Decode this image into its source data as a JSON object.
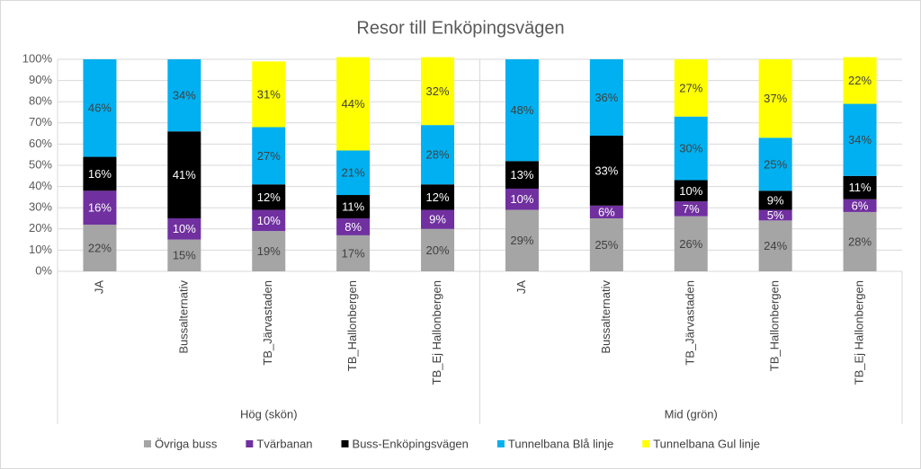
{
  "chart_data": {
    "type": "stacked_bar",
    "title": "Resor till Enköpingsvägen",
    "groups": [
      "Hög (skön)",
      "Mid (grön)"
    ],
    "categories": [
      "JA",
      "Bussalternativ",
      "TB_Järvastaden",
      "TB_Hallonbergen",
      "TB_Ej Hallonbergen",
      "JA",
      "Bussalternativ",
      "TB_Järvastaden",
      "TB_Hallonbergen",
      "TB_Ej Hallonbergen"
    ],
    "ylim": [
      0,
      100
    ],
    "yticks": [
      {
        "value": 0,
        "label": "0%"
      },
      {
        "value": 10,
        "label": "10%"
      },
      {
        "value": 20,
        "label": "20%"
      },
      {
        "value": 30,
        "label": "30%"
      },
      {
        "value": 40,
        "label": "40%"
      },
      {
        "value": 50,
        "label": "50%"
      },
      {
        "value": 60,
        "label": "60%"
      },
      {
        "value": 70,
        "label": "70%"
      },
      {
        "value": 80,
        "label": "80%"
      },
      {
        "value": 90,
        "label": "90%"
      },
      {
        "value": 100,
        "label": "100%"
      }
    ],
    "grid": true,
    "legend": "bottom",
    "series": [
      {
        "name": "Övriga buss",
        "color": "#a5a5a5",
        "values": [
          22,
          15,
          19,
          17,
          20,
          29,
          25,
          26,
          24,
          28
        ],
        "value_labels": [
          "22%",
          "15%",
          "19%",
          "17%",
          "20%",
          "29%",
          "25%",
          "26%",
          "24%",
          "28%"
        ]
      },
      {
        "name": "Tvärbanan",
        "color": "#7030a0",
        "values": [
          16,
          10,
          10,
          8,
          9,
          10,
          6,
          7,
          5,
          6
        ],
        "value_labels": [
          "16%",
          "10%",
          "10%",
          "8%",
          "9%",
          "10%",
          "6%",
          "7%",
          "5%",
          "6%"
        ]
      },
      {
        "name": "Buss-Enköpingsvägen",
        "color": "#000000",
        "values": [
          16,
          41,
          12,
          11,
          12,
          13,
          33,
          10,
          9,
          11
        ],
        "value_labels": [
          "16%",
          "41%",
          "12%",
          "11%",
          "12%",
          "13%",
          "33%",
          "10%",
          "9%",
          "11%"
        ]
      },
      {
        "name": "Tunnelbana Blå linje",
        "color": "#00b0f0",
        "values": [
          46,
          34,
          27,
          21,
          28,
          48,
          36,
          30,
          25,
          34
        ],
        "value_labels": [
          "46%",
          "34%",
          "27%",
          "21%",
          "28%",
          "48%",
          "36%",
          "30%",
          "25%",
          "34%"
        ]
      },
      {
        "name": "Tunnelbana Gul linje",
        "color": "#ffff00",
        "values": [
          null,
          null,
          31,
          44,
          32,
          null,
          null,
          27,
          37,
          22
        ],
        "value_labels": [
          null,
          null,
          "31%",
          "44%",
          "32%",
          null,
          null,
          "27%",
          "37%",
          "22%"
        ]
      }
    ]
  }
}
